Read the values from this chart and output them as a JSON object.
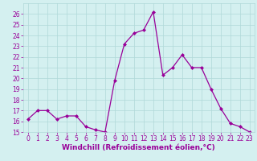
{
  "x": [
    0,
    1,
    2,
    3,
    4,
    5,
    6,
    7,
    8,
    9,
    10,
    11,
    12,
    13,
    14,
    15,
    16,
    17,
    18,
    19,
    20,
    21,
    22,
    23
  ],
  "y": [
    16.2,
    17.0,
    17.0,
    16.2,
    16.5,
    16.5,
    15.5,
    15.2,
    15.0,
    19.8,
    23.2,
    24.2,
    24.5,
    26.2,
    20.3,
    21.0,
    22.2,
    21.0,
    21.0,
    19.0,
    17.2,
    15.8,
    15.5,
    15.0
  ],
  "line_color": "#990099",
  "marker": "D",
  "markersize": 2.0,
  "linewidth": 0.9,
  "bg_color": "#d4f0f0",
  "grid_color": "#b0d8d8",
  "xlabel": "Windchill (Refroidissement éolien,°C)",
  "xlabel_color": "#990099",
  "xlabel_fontsize": 6.5,
  "tick_color": "#990099",
  "tick_fontsize": 5.5,
  "ylim": [
    15,
    27
  ],
  "yticks": [
    15,
    16,
    17,
    18,
    19,
    20,
    21,
    22,
    23,
    24,
    25,
    26
  ],
  "xlim": [
    -0.5,
    23.5
  ],
  "xticks": [
    0,
    1,
    2,
    3,
    4,
    5,
    6,
    7,
    8,
    9,
    10,
    11,
    12,
    13,
    14,
    15,
    16,
    17,
    18,
    19,
    20,
    21,
    22,
    23
  ]
}
